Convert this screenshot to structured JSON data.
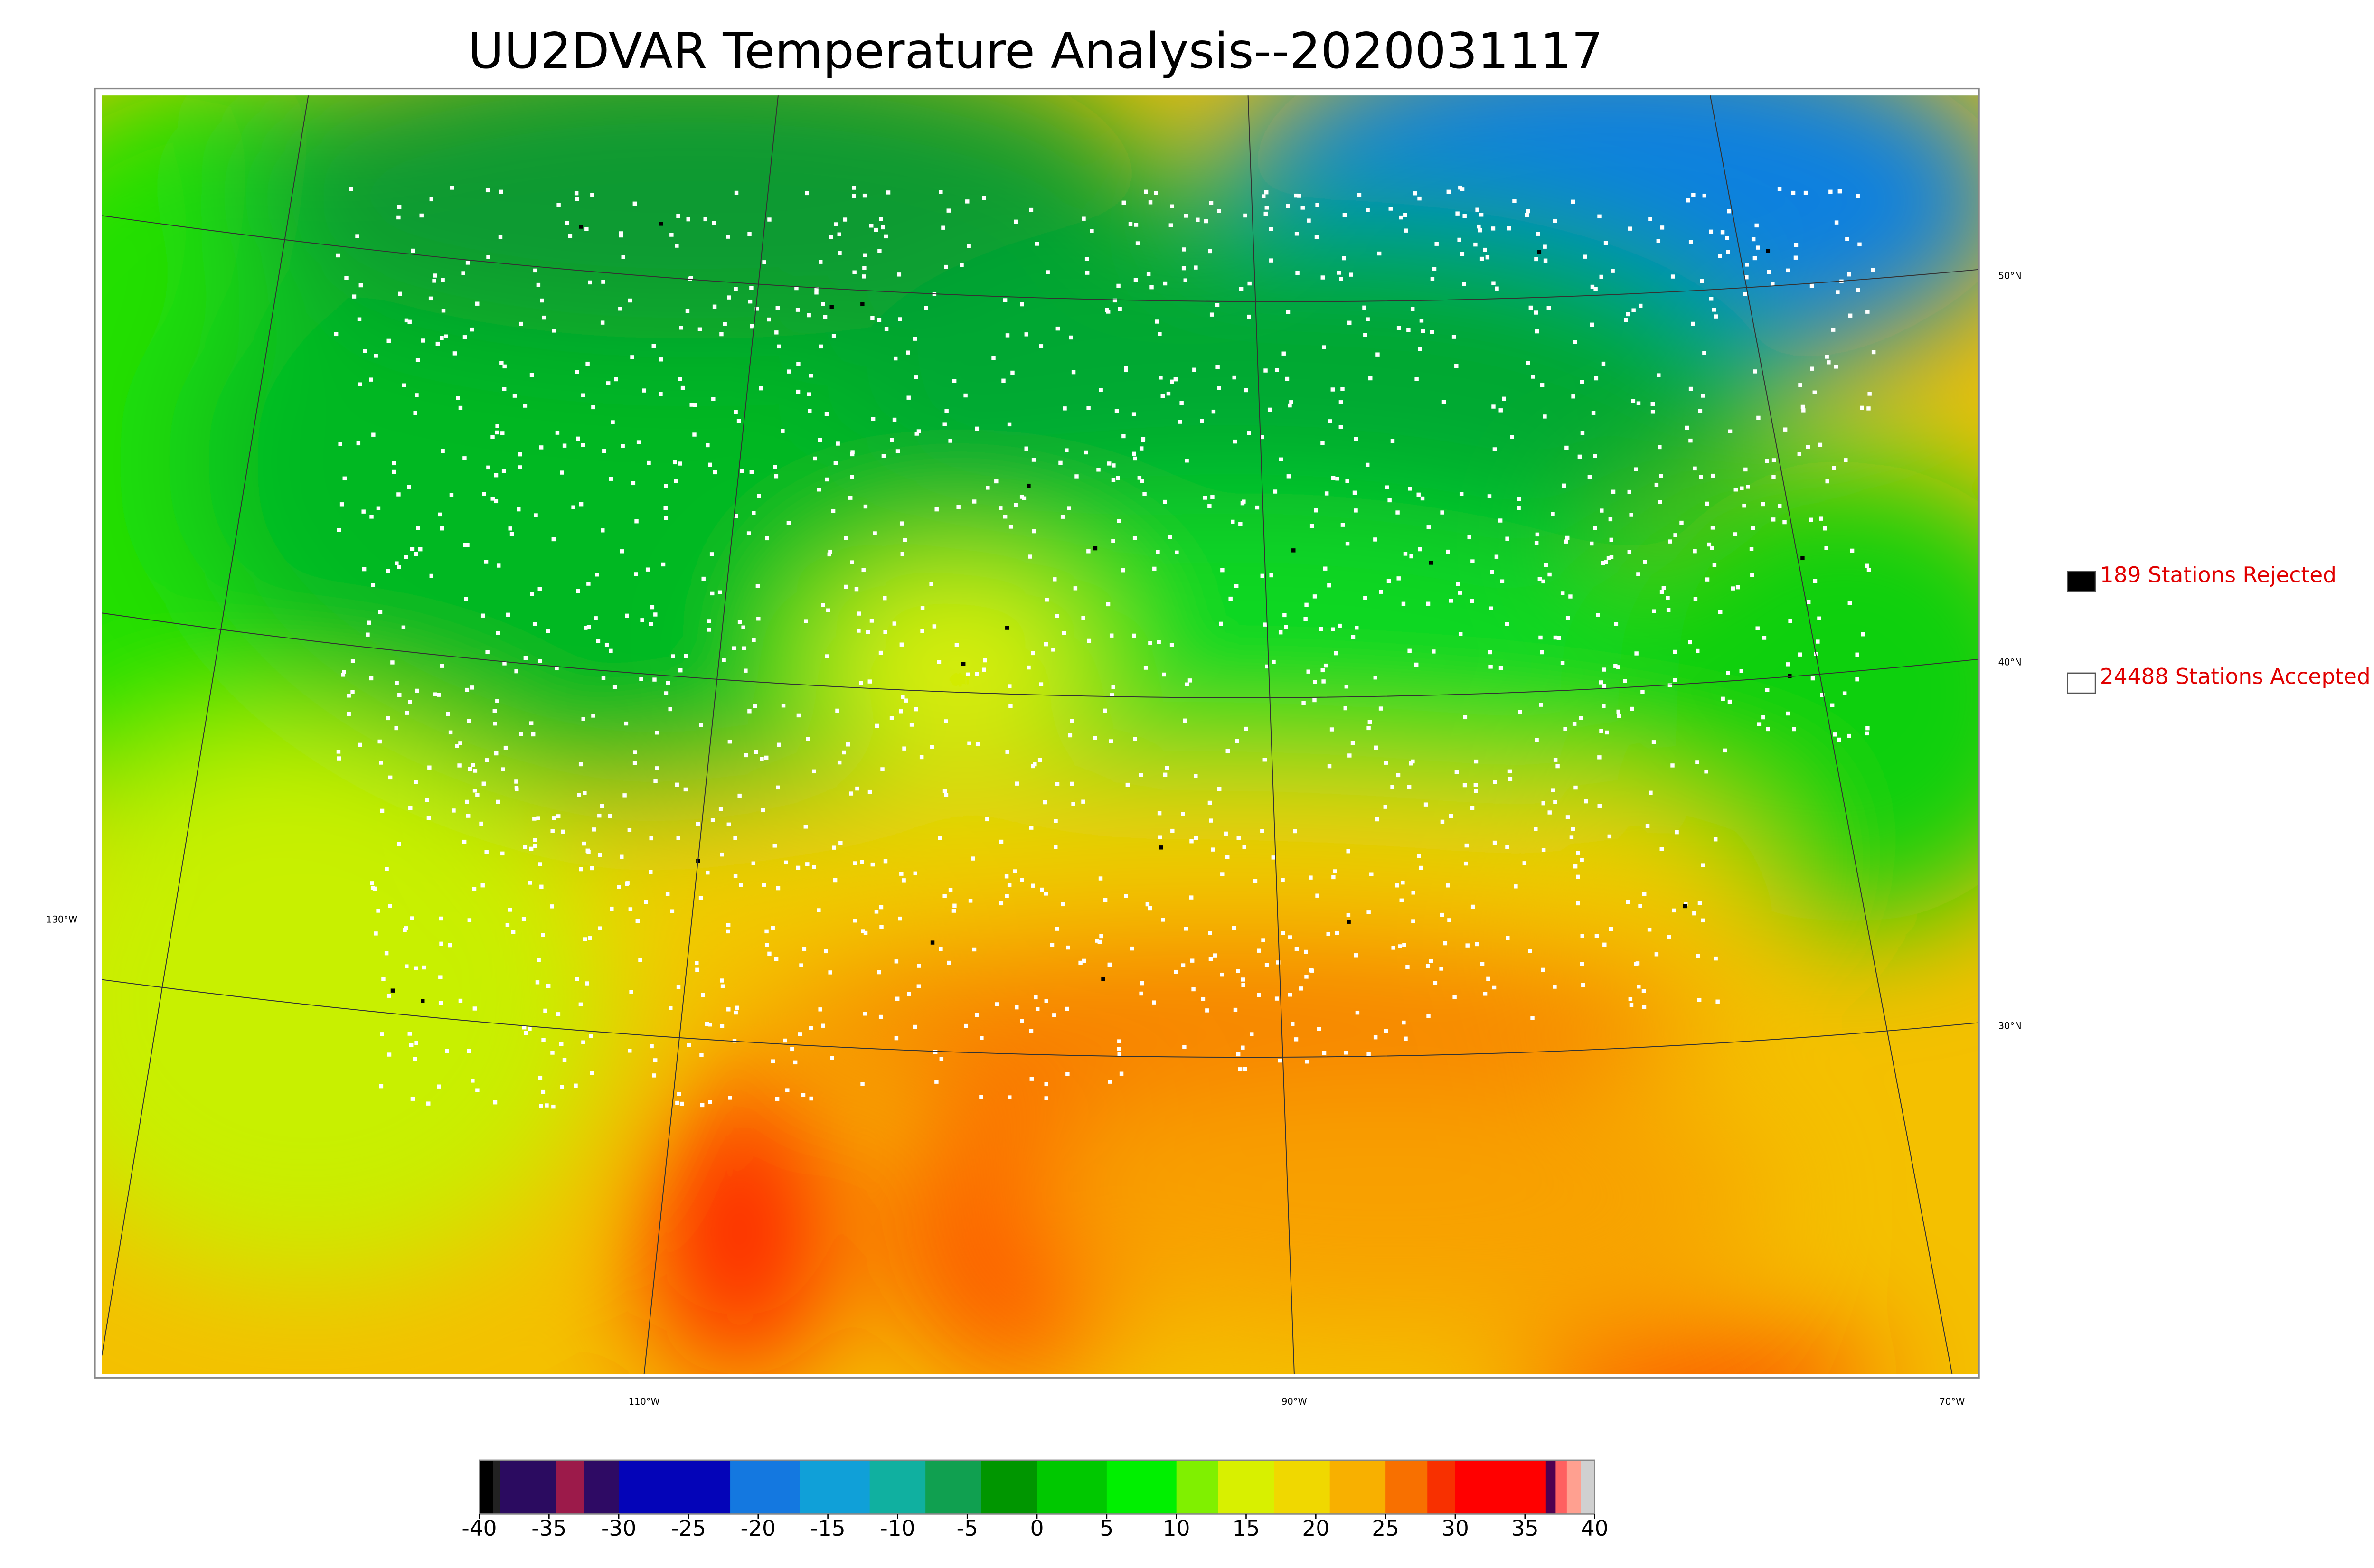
{
  "title": "UU2DVAR Temperature Analysis--2020031117",
  "map": {
    "lat_labels": [
      "50°N",
      "40°N",
      "30°N"
    ],
    "lon_labels": [
      "130°W",
      "110°W",
      "90°W",
      "70°W"
    ]
  },
  "legend": [
    {
      "label": "189 Stations Rejected",
      "color": "#000000"
    },
    {
      "label": "24488 Stations Accepted",
      "color": "#ffffff"
    }
  ],
  "colorbar": {
    "range": [
      -40,
      40
    ],
    "ticks": [
      -40,
      -35,
      -30,
      -25,
      -20,
      -15,
      -10,
      -5,
      0,
      5,
      10,
      15,
      20,
      25,
      30,
      35,
      40
    ],
    "segments": [
      {
        "from": -40,
        "to": -39,
        "color": "#000000"
      },
      {
        "from": -39,
        "to": -38.5,
        "color": "#222222"
      },
      {
        "from": -38.5,
        "to": -34.5,
        "color": "#2b0b60"
      },
      {
        "from": -34.5,
        "to": -32.5,
        "color": "#9c1a4a"
      },
      {
        "from": -32.5,
        "to": -30,
        "color": "#2e0a64"
      },
      {
        "from": -30,
        "to": -22,
        "color": "#0404b8"
      },
      {
        "from": -22,
        "to": -17,
        "color": "#1478e0"
      },
      {
        "from": -17,
        "to": -12,
        "color": "#10a0d8"
      },
      {
        "from": -12,
        "to": -8,
        "color": "#10b0a0"
      },
      {
        "from": -8,
        "to": -4,
        "color": "#10a050"
      },
      {
        "from": -4,
        "to": 0,
        "color": "#009600"
      },
      {
        "from": 0,
        "to": 5,
        "color": "#00c800"
      },
      {
        "from": 5,
        "to": 10,
        "color": "#00f000"
      },
      {
        "from": 10,
        "to": 13,
        "color": "#80f000"
      },
      {
        "from": 13,
        "to": 17,
        "color": "#d8f000"
      },
      {
        "from": 17,
        "to": 21,
        "color": "#f0d800"
      },
      {
        "from": 21,
        "to": 25,
        "color": "#f8b000"
      },
      {
        "from": 25,
        "to": 28,
        "color": "#f87000"
      },
      {
        "from": 28,
        "to": 30,
        "color": "#f83000"
      },
      {
        "from": 30,
        "to": 36.5,
        "color": "#ff0000"
      },
      {
        "from": 36.5,
        "to": 37.2,
        "color": "#500050"
      },
      {
        "from": 37.2,
        "to": 38,
        "color": "#ff6060"
      },
      {
        "from": 38,
        "to": 39,
        "color": "#ffa090"
      },
      {
        "from": 39,
        "to": 40,
        "color": "#d0d0d0"
      }
    ]
  }
}
